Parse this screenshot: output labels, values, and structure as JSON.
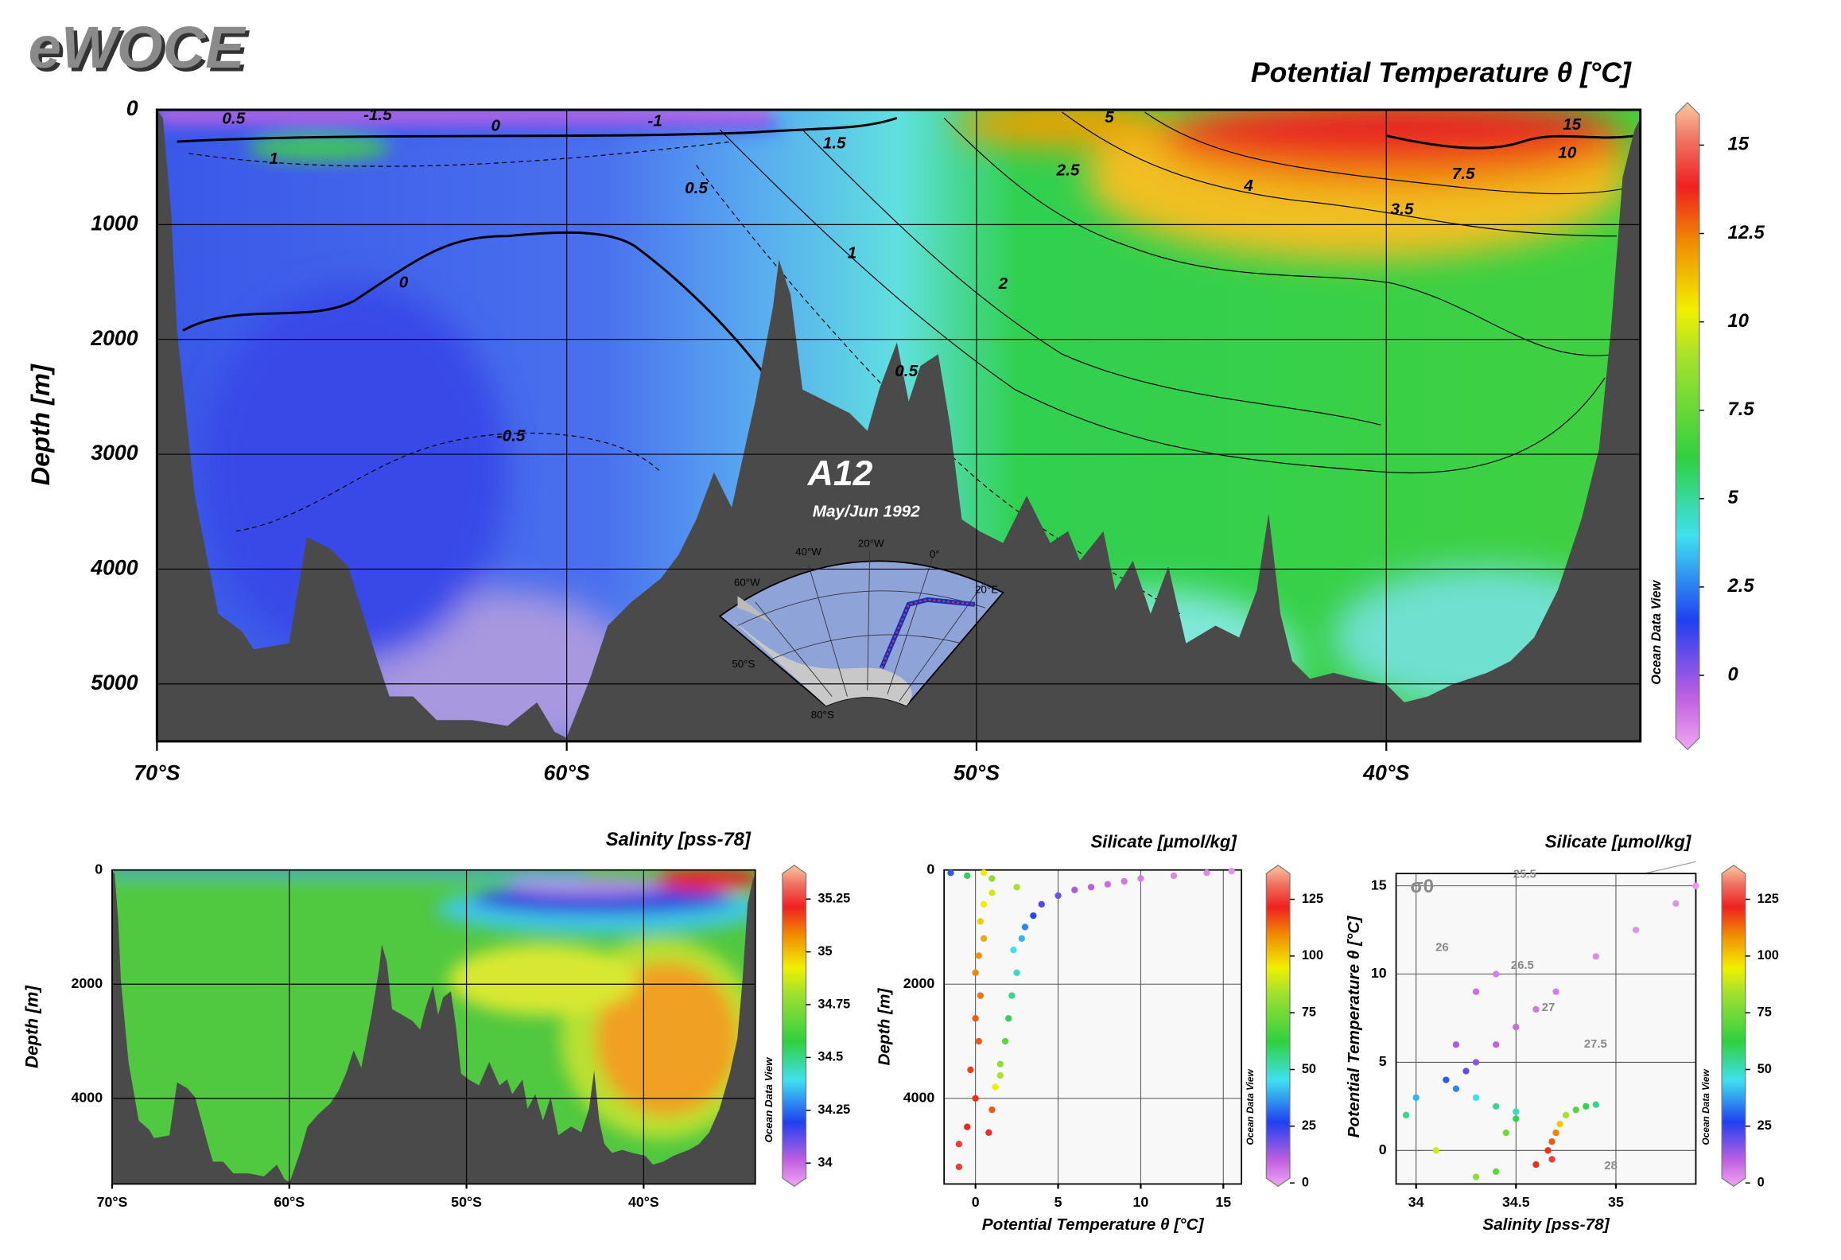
{
  "brand": "eWOCE",
  "chart_data": [
    {
      "type": "section",
      "title": "Potential Temperature θ [°C]",
      "y_label": "Depth [m]",
      "xlim": [
        -70,
        -33.8
      ],
      "xticks": [
        {
          "value": -70,
          "label": "70°S"
        },
        {
          "value": -60,
          "label": "60°S"
        },
        {
          "value": -50,
          "label": "50°S"
        },
        {
          "value": -40,
          "label": "40°S"
        }
      ],
      "ylim": [
        0,
        5500
      ],
      "y_inverted": true,
      "yticks": [
        0,
        1000,
        2000,
        3000,
        4000,
        5000
      ],
      "grid": true,
      "colorbar": {
        "lim": [
          -2.1,
          16.2
        ],
        "ticks": [
          0,
          2.5,
          5,
          7.5,
          10,
          12.5,
          15
        ]
      },
      "contour_labels": [
        "0.5",
        "-1.5",
        "0",
        "-1",
        "1",
        "1.5",
        "0.5",
        "2.5",
        "4",
        "3.5",
        "7.5",
        "10",
        "15",
        "5",
        "0",
        "1",
        "2",
        "0.5",
        "-0.5"
      ],
      "inset": {
        "title": "A12",
        "subtitle": "May/Jun 1992",
        "labels": [
          "60°W",
          "40°W",
          "20°W",
          "0°",
          "20°E",
          "50°S",
          "80°S"
        ]
      },
      "watermark": "Ocean Data View"
    },
    {
      "type": "section",
      "title": "Salinity [pss-78]",
      "y_label": "Depth [m]",
      "xlim": [
        -70,
        -33.7
      ],
      "xticks": [
        {
          "value": -70,
          "label": "70°S"
        },
        {
          "value": -60,
          "label": "60°S"
        },
        {
          "value": -50,
          "label": "50°S"
        },
        {
          "value": -40,
          "label": "40°S"
        }
      ],
      "ylim": [
        0,
        5500
      ],
      "y_inverted": true,
      "yticks": [
        0,
        2000,
        4000
      ],
      "grid": true,
      "colorbar": {
        "lim": [
          33.89,
          35.41
        ],
        "ticks": [
          34,
          34.25,
          34.5,
          34.75,
          35,
          35.25
        ]
      },
      "watermark": "Ocean Data View"
    },
    {
      "type": "scatter",
      "title": "Silicate [µmol/kg]",
      "x_label": "Potential Temperature θ [°C]",
      "y_label": "Depth [m]",
      "xlim": [
        -1.9,
        16.1
      ],
      "xticks": [
        0,
        5,
        10,
        15
      ],
      "ylim": [
        0,
        5500
      ],
      "y_inverted": true,
      "yticks": [
        0,
        2000,
        4000
      ],
      "grid": true,
      "colorbar": {
        "lim": [
          -1.5,
          140
        ],
        "ticks": [
          0,
          25,
          50,
          75,
          100,
          125
        ]
      },
      "x": [
        -1,
        -1,
        -0.5,
        0,
        -0.3,
        0.2,
        0,
        0.3,
        0,
        0.2,
        0.5,
        0.3,
        0.5,
        1,
        0.8,
        1,
        1.2,
        1.5,
        1.8,
        1.5,
        2,
        2.2,
        2.5,
        2.3,
        2.8,
        3,
        3.5,
        4,
        5,
        6,
        7,
        8,
        9,
        10,
        12,
        14,
        15.5,
        -1.5,
        -0.5,
        1,
        2.5,
        0.5
      ],
      "y": [
        5200,
        4800,
        4500,
        4000,
        3500,
        3000,
        2600,
        2200,
        1800,
        1500,
        1200,
        900,
        600,
        400,
        4600,
        4200,
        3800,
        3400,
        3000,
        3600,
        2600,
        2200,
        1800,
        1400,
        1200,
        1000,
        800,
        600,
        450,
        350,
        300,
        250,
        200,
        150,
        100,
        50,
        20,
        50,
        100,
        150,
        300,
        50
      ],
      "silicate": [
        125,
        125,
        122,
        120,
        118,
        115,
        115,
        112,
        110,
        108,
        105,
        100,
        95,
        90,
        120,
        115,
        95,
        80,
        70,
        85,
        60,
        55,
        50,
        45,
        40,
        35,
        28,
        22,
        18,
        12,
        10,
        8,
        6,
        5,
        4,
        3,
        2,
        30,
        60,
        80,
        85,
        95
      ],
      "watermark": "Ocean Data View"
    },
    {
      "type": "scatter",
      "title": "Silicate [µmol/kg]",
      "x_label": "Salinity [pss-78]",
      "y_label": "Potential Temperature θ [°C]",
      "xlim": [
        33.9,
        35.4
      ],
      "xticks": [
        34,
        34.5,
        35
      ],
      "ylim": [
        -1.9,
        15.7
      ],
      "yticks": [
        0,
        5,
        10,
        15
      ],
      "grid": true,
      "colorbar": {
        "lim": [
          -1.5,
          140
        ],
        "ticks": [
          0,
          25,
          50,
          75,
          100,
          125
        ]
      },
      "sigma_labels": [
        "σ0",
        "25.5",
        "26",
        "26.5",
        "27",
        "27.5",
        "28"
      ],
      "x": [
        34.68,
        34.66,
        34.68,
        34.7,
        34.72,
        34.75,
        34.8,
        34.85,
        34.5,
        34.4,
        34.3,
        34.2,
        34.15,
        34.25,
        34.3,
        34.4,
        34.5,
        34.6,
        34.7,
        34.9,
        35.1,
        35.3,
        35.4,
        34.3,
        34.4,
        34.0,
        33.95,
        34.1,
        34.3,
        34.4,
        34.5,
        34.9,
        34.6,
        34.2,
        34.45
      ],
      "y": [
        -0.5,
        0,
        0.5,
        1,
        1.5,
        2,
        2.3,
        2.5,
        2.2,
        2.5,
        3,
        3.5,
        4,
        4.5,
        5,
        6,
        7,
        8,
        9,
        11,
        12.5,
        14,
        15,
        9,
        10,
        3,
        2,
        0,
        -1.5,
        -1.2,
        1.8,
        2.6,
        -0.8,
        6,
        1
      ],
      "silicate": [
        125,
        120,
        115,
        110,
        100,
        85,
        70,
        60,
        50,
        55,
        45,
        35,
        30,
        20,
        15,
        10,
        8,
        6,
        5,
        3,
        2,
        2,
        1,
        8,
        5,
        40,
        55,
        90,
        80,
        70,
        60,
        55,
        120,
        12,
        75
      ],
      "watermark": "Ocean Data View"
    }
  ]
}
